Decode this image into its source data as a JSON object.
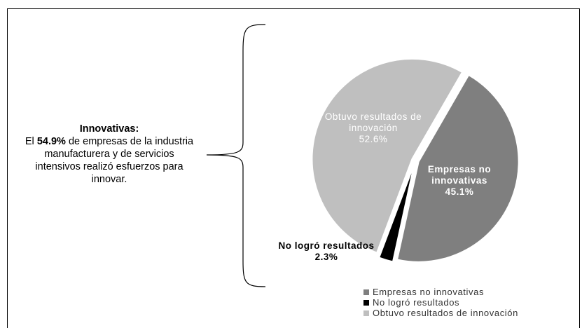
{
  "chart_data": {
    "type": "pie",
    "categories": [
      "Empresas no innovativas",
      "No logró resultados",
      "Obtuvo resultados de innovación"
    ],
    "values": [
      45.1,
      2.3,
      52.6
    ],
    "value_labels": [
      "45.1%",
      "2.3%",
      "52.6%"
    ],
    "colors": [
      "#7f7f7f",
      "#000000",
      "#bfbfbf"
    ],
    "legend": "bottom-right"
  },
  "annotation": {
    "title": "Innovativas:",
    "text_before": "El",
    "highlight": "54.9%",
    "text_after": "de empresas de la industria manufacturera y de servicios intensivos realizó esfuerzos para innovar."
  }
}
